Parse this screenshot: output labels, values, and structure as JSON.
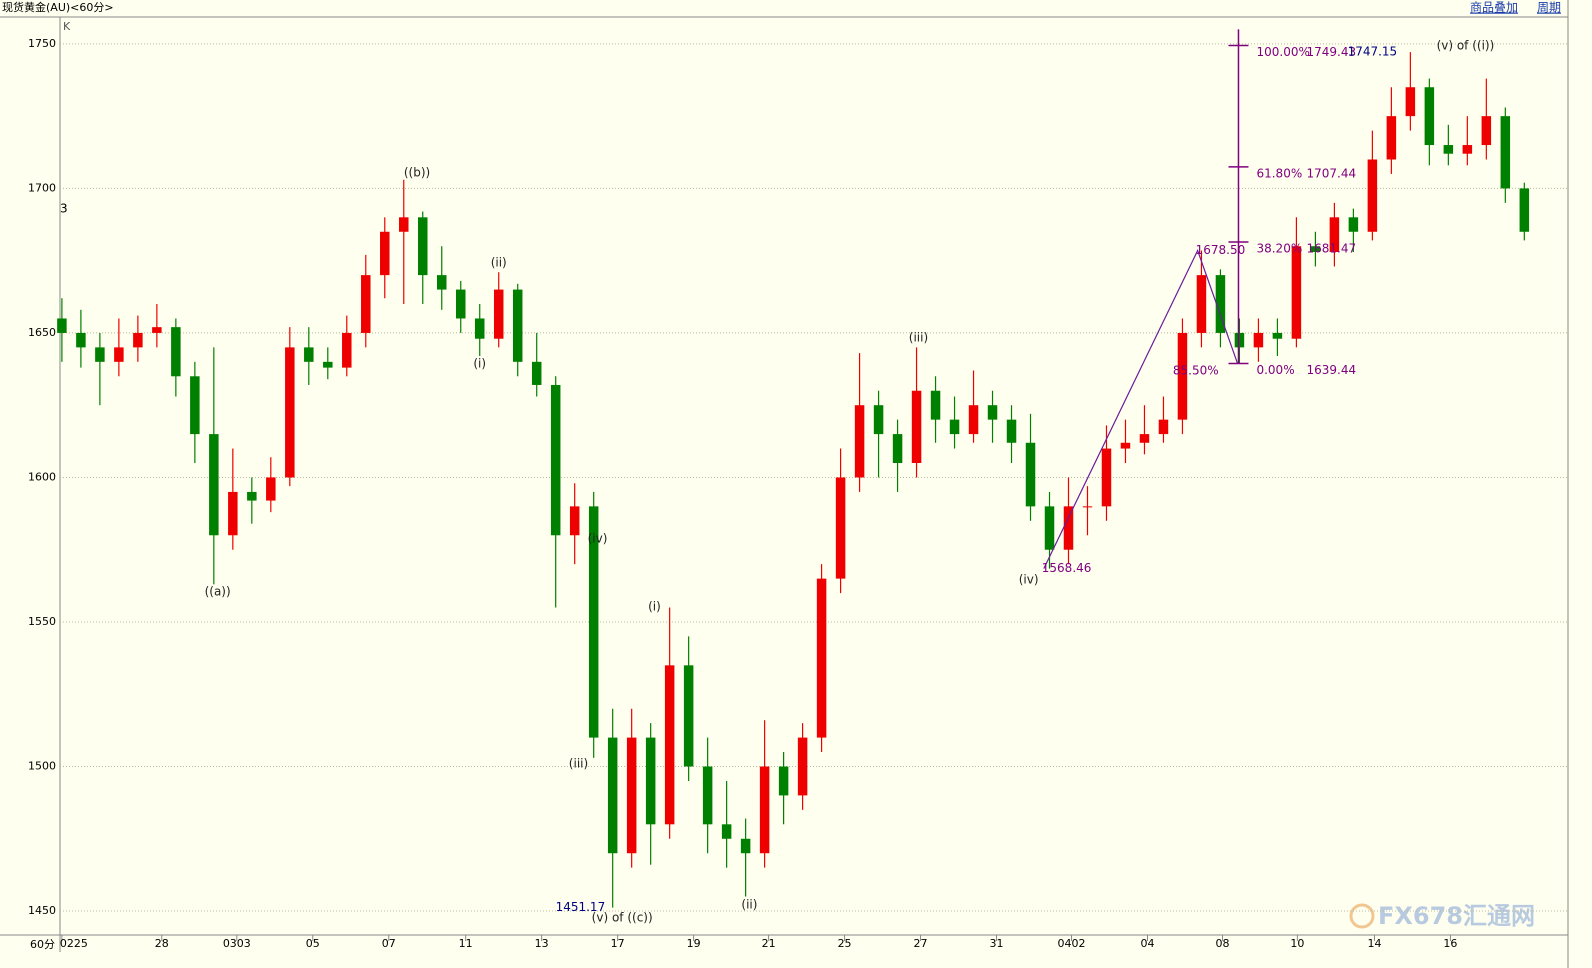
{
  "header": {
    "title": "现货黄金(AU)<60分>",
    "links": [
      "商品叠加",
      "周期"
    ]
  },
  "chart_data": {
    "type": "candlestick",
    "y_axis_label": "K",
    "side_mark": "3",
    "period_label": "60分",
    "watermark": "FX678汇通网",
    "up_color": "#ee0000",
    "down_color": "#008000",
    "grid": true,
    "ylim": [
      1442.4,
      1759.3
    ],
    "yticks": [
      1450,
      1500,
      1550,
      1600,
      1650,
      1700,
      1750
    ],
    "xlim": [
      -0.1,
      79.3
    ],
    "xticks": [
      {
        "value": 0,
        "label": "0225"
      },
      {
        "value": 5.26,
        "label": "28"
      },
      {
        "value": 9.21,
        "label": "0303"
      },
      {
        "value": 13.21,
        "label": "05"
      },
      {
        "value": 17.21,
        "label": "07"
      },
      {
        "value": 21.26,
        "label": "11"
      },
      {
        "value": 25.26,
        "label": "13"
      },
      {
        "value": 29.26,
        "label": "17"
      },
      {
        "value": 33.26,
        "label": "19"
      },
      {
        "value": 37.21,
        "label": "21"
      },
      {
        "value": 41.21,
        "label": "25"
      },
      {
        "value": 45.21,
        "label": "27"
      },
      {
        "value": 49.21,
        "label": "31"
      },
      {
        "value": 53.16,
        "label": "0402"
      },
      {
        "value": 57.16,
        "label": "04"
      },
      {
        "value": 61.11,
        "label": "08"
      },
      {
        "value": 65.05,
        "label": "10"
      },
      {
        "value": 69.11,
        "label": "14"
      },
      {
        "value": 73.11,
        "label": "16"
      }
    ],
    "open": [
      1655,
      1650,
      1645,
      1640,
      1645,
      1650,
      1652,
      1635,
      1615,
      1580,
      1595,
      1592,
      1600,
      1645,
      1640,
      1638,
      1650,
      1670,
      1685,
      1690,
      1670,
      1665,
      1655,
      1648,
      1665,
      1640,
      1632,
      1580,
      1590,
      1510,
      1470,
      1510,
      1480,
      1535,
      1500,
      1480,
      1475,
      1470,
      1500,
      1490,
      1510,
      1565,
      1600,
      1625,
      1615,
      1605,
      1630,
      1620,
      1615,
      1625,
      1620,
      1612,
      1590,
      1575,
      1590,
      1590,
      1610,
      1612,
      1615,
      1620,
      1650,
      1670,
      1650,
      1645,
      1650,
      1648,
      1680,
      1678,
      1690,
      1685,
      1710,
      1725,
      1735,
      1715,
      1712,
      1715,
      1725,
      1700
    ],
    "high": [
      1662,
      1658,
      1650,
      1655,
      1656,
      1660,
      1655,
      1640,
      1645,
      1610,
      1600,
      1607,
      1652,
      1652,
      1645,
      1656,
      1677,
      1690,
      1703,
      1692,
      1680,
      1668,
      1660,
      1671,
      1667,
      1650,
      1635,
      1598,
      1595,
      1520,
      1520,
      1515,
      1555,
      1545,
      1510,
      1495,
      1482,
      1516,
      1505,
      1515,
      1570,
      1610,
      1643,
      1630,
      1620,
      1645,
      1635,
      1628,
      1637,
      1630,
      1625,
      1622,
      1595,
      1600,
      1597,
      1618,
      1620,
      1625,
      1628,
      1655,
      1678.5,
      1672,
      1655,
      1655,
      1655,
      1690,
      1685,
      1695,
      1693,
      1720,
      1735,
      1747.15,
      1738,
      1722,
      1725,
      1738,
      1728,
      1702
    ],
    "low": [
      1640,
      1638,
      1625,
      1635,
      1640,
      1645,
      1628,
      1605,
      1563,
      1575,
      1584,
      1588,
      1597,
      1632,
      1634,
      1635,
      1645,
      1662,
      1660,
      1660,
      1658,
      1650,
      1642,
      1645,
      1635,
      1628,
      1555,
      1570,
      1503,
      1451.17,
      1465,
      1466,
      1475,
      1495,
      1470,
      1465,
      1455,
      1465,
      1480,
      1485,
      1505,
      1560,
      1595,
      1600,
      1595,
      1600,
      1612,
      1610,
      1612,
      1612,
      1605,
      1585,
      1568.46,
      1570,
      1580,
      1585,
      1605,
      1608,
      1612,
      1615,
      1645,
      1645,
      1639.44,
      1640,
      1642,
      1645,
      1673,
      1673,
      1678,
      1682,
      1705,
      1720,
      1708,
      1708,
      1708,
      1710,
      1695,
      1682
    ],
    "close": [
      1650,
      1645,
      1640,
      1645,
      1650,
      1652,
      1635,
      1615,
      1580,
      1595,
      1592,
      1600,
      1645,
      1640,
      1638,
      1650,
      1670,
      1685,
      1690,
      1670,
      1665,
      1655,
      1648,
      1665,
      1640,
      1632,
      1580,
      1590,
      1510,
      1470,
      1510,
      1480,
      1535,
      1500,
      1480,
      1475,
      1470,
      1500,
      1490,
      1510,
      1565,
      1600,
      1625,
      1615,
      1605,
      1630,
      1620,
      1615,
      1625,
      1620,
      1612,
      1590,
      1575,
      1590,
      1590,
      1610,
      1612,
      1615,
      1620,
      1650,
      1670,
      1650,
      1645,
      1650,
      1648,
      1680,
      1678,
      1690,
      1685,
      1710,
      1725,
      1735,
      1715,
      1712,
      1715,
      1725,
      1700,
      1685
    ],
    "trend_line": {
      "color": "#6a1b9a",
      "x": [
        51.7,
        59.8,
        61.9
      ],
      "y": [
        1568.46,
        1678.5,
        1639.44
      ]
    },
    "fibonacci": {
      "color": "#800080",
      "x": 61.95,
      "top": 1755,
      "levels": [
        {
          "pct": "100.00%",
          "value": 1749.43,
          "label": "1749.43"
        },
        {
          "pct": "61.80%",
          "value": 1707.44,
          "label": "1707.44"
        },
        {
          "pct": "38.20%",
          "value": 1681.47,
          "label": "1681.47"
        },
        {
          "pct": "0.00%",
          "value": 1639.44,
          "label": "1639.44"
        }
      ]
    },
    "annotations": [
      {
        "text": "((a))",
        "x": 8.2,
        "y": 1560.4,
        "color": "#222"
      },
      {
        "text": "((b))",
        "x": 18.7,
        "y": 1705.4,
        "color": "#222"
      },
      {
        "text": "(i)",
        "x": 22.0,
        "y": 1639.3,
        "color": "#222"
      },
      {
        "text": "(ii)",
        "x": 23.0,
        "y": 1674.2,
        "color": "#222"
      },
      {
        "text": "(iii)",
        "x": 27.2,
        "y": 1500.9,
        "color": "#222"
      },
      {
        "text": "(iv)",
        "x": 28.2,
        "y": 1578.7,
        "color": "#222"
      },
      {
        "text": "1451.17",
        "x": 27.3,
        "y": 1451.17,
        "color": "#000080"
      },
      {
        "text": "(v) of ((c))",
        "x": 29.5,
        "y": 1447.6,
        "color": "#222"
      },
      {
        "text": "(i)",
        "x": 31.2,
        "y": 1555.2,
        "color": "#222"
      },
      {
        "text": "(ii)",
        "x": 36.2,
        "y": 1452.1,
        "color": "#222"
      },
      {
        "text": "(iii)",
        "x": 45.1,
        "y": 1648.3,
        "color": "#222"
      },
      {
        "text": "(iv)",
        "x": 50.9,
        "y": 1564.5,
        "color": "#222"
      },
      {
        "text": "1568.46",
        "x": 52.9,
        "y": 1568.46,
        "color": "#800080"
      },
      {
        "text": "1678.50",
        "x": 61.0,
        "y": 1678.5,
        "color": "#800080"
      },
      {
        "text": "85.50%",
        "x": 59.7,
        "y": 1636.9,
        "color": "#800080"
      },
      {
        "text": "1747.15",
        "x": 69.0,
        "y": 1747.15,
        "color": "#000080"
      },
      {
        "text": "(v) of ((i))",
        "x": 73.9,
        "y": 1749.3,
        "color": "#222"
      }
    ]
  }
}
